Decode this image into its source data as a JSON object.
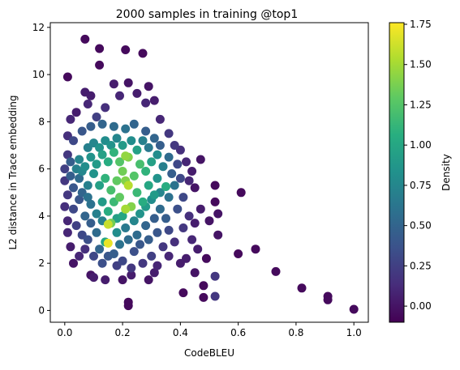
{
  "figure": {
    "title": "2000 samples in training @top1"
  },
  "chart_data": {
    "type": "scatter",
    "title": "2000 samples in training @top1",
    "xlabel": "CodeBLEU",
    "ylabel": "L2 distance in Trace embedding",
    "xlim": [
      -0.05,
      1.05
    ],
    "ylim": [
      -0.5,
      12.2
    ],
    "xticks": [
      "0.0",
      "0.2",
      "0.4",
      "0.6",
      "0.8",
      "1.0"
    ],
    "xtick_values": [
      0.0,
      0.2,
      0.4,
      0.6,
      0.8,
      1.0
    ],
    "yticks": [
      "0",
      "2",
      "4",
      "6",
      "8",
      "10",
      "12"
    ],
    "ytick_values": [
      0,
      2,
      4,
      6,
      8,
      10,
      12
    ],
    "grid": false,
    "colormap": "viridis",
    "colorbar": {
      "label": "Density",
      "range": [
        -0.1,
        1.76
      ],
      "ticks": [
        "0.00",
        "0.25",
        "0.50",
        "0.75",
        "1.00",
        "1.25",
        "1.50",
        "1.75"
      ],
      "tick_values": [
        0.0,
        0.25,
        0.5,
        0.75,
        1.0,
        1.25,
        1.5,
        1.75
      ]
    },
    "points": [
      {
        "x": 0.07,
        "y": 11.5,
        "d": -0.05
      },
      {
        "x": 0.12,
        "y": 11.1,
        "d": -0.05
      },
      {
        "x": 0.21,
        "y": 11.05,
        "d": -0.05
      },
      {
        "x": 0.27,
        "y": 10.9,
        "d": -0.05
      },
      {
        "x": 0.12,
        "y": 10.4,
        "d": -0.05
      },
      {
        "x": 0.01,
        "y": 9.9,
        "d": -0.05
      },
      {
        "x": 0.22,
        "y": 9.65,
        "d": 0.0
      },
      {
        "x": 0.17,
        "y": 9.6,
        "d": 0.05
      },
      {
        "x": 0.29,
        "y": 9.5,
        "d": 0.0
      },
      {
        "x": 0.07,
        "y": 9.25,
        "d": 0.05
      },
      {
        "x": 0.08,
        "y": 8.75,
        "d": 0.1
      },
      {
        "x": 0.19,
        "y": 9.1,
        "d": 0.1
      },
      {
        "x": 0.25,
        "y": 9.2,
        "d": 0.05
      },
      {
        "x": 0.28,
        "y": 8.8,
        "d": 0.1
      },
      {
        "x": 0.31,
        "y": 8.9,
        "d": 0.05
      },
      {
        "x": 0.09,
        "y": 9.1,
        "d": 0.05
      },
      {
        "x": 0.14,
        "y": 8.6,
        "d": 0.15
      },
      {
        "x": 0.02,
        "y": 8.1,
        "d": 0.1
      },
      {
        "x": 0.04,
        "y": 8.4,
        "d": 0.05
      },
      {
        "x": 0.11,
        "y": 8.2,
        "d": 0.25
      },
      {
        "x": 0.33,
        "y": 8.1,
        "d": 0.1
      },
      {
        "x": 0.36,
        "y": 7.5,
        "d": 0.2
      },
      {
        "x": 0.38,
        "y": 7.0,
        "d": 0.2
      },
      {
        "x": 0.4,
        "y": 6.8,
        "d": 0.15
      },
      {
        "x": 0.42,
        "y": 6.3,
        "d": 0.1
      },
      {
        "x": 0.44,
        "y": 5.9,
        "d": 0.05
      },
      {
        "x": 0.47,
        "y": 6.4,
        "d": 0.0
      },
      {
        "x": 0.01,
        "y": 7.4,
        "d": 0.15
      },
      {
        "x": 0.01,
        "y": 6.6,
        "d": 0.2
      },
      {
        "x": 0.0,
        "y": 6.0,
        "d": 0.25
      },
      {
        "x": 0.0,
        "y": 5.5,
        "d": 0.2
      },
      {
        "x": 0.01,
        "y": 4.9,
        "d": 0.2
      },
      {
        "x": 0.0,
        "y": 4.4,
        "d": 0.15
      },
      {
        "x": 0.01,
        "y": 3.8,
        "d": 0.1
      },
      {
        "x": 0.01,
        "y": 3.3,
        "d": 0.1
      },
      {
        "x": 0.02,
        "y": 2.7,
        "d": 0.05
      },
      {
        "x": 0.07,
        "y": 2.6,
        "d": 0.15
      },
      {
        "x": 0.05,
        "y": 2.3,
        "d": 0.1
      },
      {
        "x": 0.09,
        "y": 1.5,
        "d": 0.0
      },
      {
        "x": 0.1,
        "y": 1.4,
        "d": 0.05
      },
      {
        "x": 0.14,
        "y": 1.3,
        "d": 0.05
      },
      {
        "x": 0.2,
        "y": 1.3,
        "d": 0.0
      },
      {
        "x": 0.23,
        "y": 1.5,
        "d": 0.05
      },
      {
        "x": 0.29,
        "y": 1.3,
        "d": 0.0
      },
      {
        "x": 0.31,
        "y": 1.6,
        "d": 0.05
      },
      {
        "x": 0.22,
        "y": 0.35,
        "d": -0.05
      },
      {
        "x": 0.22,
        "y": 0.2,
        "d": -0.05
      },
      {
        "x": 0.41,
        "y": 0.75,
        "d": -0.05
      },
      {
        "x": 0.48,
        "y": 0.55,
        "d": -0.05
      },
      {
        "x": 0.48,
        "y": 1.05,
        "d": -0.05
      },
      {
        "x": 0.52,
        "y": 0.6,
        "d": 0.2
      },
      {
        "x": 0.52,
        "y": 1.45,
        "d": 0.2
      },
      {
        "x": 0.52,
        "y": 5.3,
        "d": -0.05
      },
      {
        "x": 0.52,
        "y": 4.6,
        "d": -0.05
      },
      {
        "x": 0.53,
        "y": 4.1,
        "d": 0.0
      },
      {
        "x": 0.53,
        "y": 3.2,
        "d": 0.0
      },
      {
        "x": 0.5,
        "y": 3.8,
        "d": 0.0
      },
      {
        "x": 0.47,
        "y": 4.3,
        "d": 0.05
      },
      {
        "x": 0.45,
        "y": 3.7,
        "d": 0.05
      },
      {
        "x": 0.44,
        "y": 3.0,
        "d": 0.1
      },
      {
        "x": 0.46,
        "y": 2.6,
        "d": 0.05
      },
      {
        "x": 0.42,
        "y": 2.2,
        "d": 0.05
      },
      {
        "x": 0.45,
        "y": 1.6,
        "d": 0.0
      },
      {
        "x": 0.49,
        "y": 2.2,
        "d": -0.05
      },
      {
        "x": 0.6,
        "y": 2.4,
        "d": -0.05
      },
      {
        "x": 0.61,
        "y": 5.0,
        "d": -0.05
      },
      {
        "x": 0.66,
        "y": 2.6,
        "d": -0.05
      },
      {
        "x": 0.73,
        "y": 1.65,
        "d": -0.05
      },
      {
        "x": 0.82,
        "y": 0.95,
        "d": -0.05
      },
      {
        "x": 0.91,
        "y": 0.6,
        "d": -0.05
      },
      {
        "x": 0.91,
        "y": 0.45,
        "d": -0.05
      },
      {
        "x": 1.0,
        "y": 0.05,
        "d": -0.05
      },
      {
        "x": 0.38,
        "y": 2.9,
        "d": 0.15
      },
      {
        "x": 0.36,
        "y": 3.4,
        "d": 0.3
      },
      {
        "x": 0.34,
        "y": 2.7,
        "d": 0.2
      },
      {
        "x": 0.3,
        "y": 2.3,
        "d": 0.25
      },
      {
        "x": 0.27,
        "y": 2.0,
        "d": 0.2
      },
      {
        "x": 0.24,
        "y": 2.5,
        "d": 0.35
      },
      {
        "x": 0.2,
        "y": 2.1,
        "d": 0.3
      },
      {
        "x": 0.17,
        "y": 2.4,
        "d": 0.45
      },
      {
        "x": 0.13,
        "y": 2.0,
        "d": 0.35
      },
      {
        "x": 0.1,
        "y": 2.3,
        "d": 0.3
      },
      {
        "x": 0.08,
        "y": 3.0,
        "d": 0.35
      },
      {
        "x": 0.11,
        "y": 3.3,
        "d": 0.55
      },
      {
        "x": 0.14,
        "y": 2.9,
        "d": 1.0
      },
      {
        "x": 0.15,
        "y": 2.85,
        "d": 1.7
      },
      {
        "x": 0.16,
        "y": 3.7,
        "d": 1.35
      },
      {
        "x": 0.15,
        "y": 3.65,
        "d": 1.6
      },
      {
        "x": 0.18,
        "y": 3.3,
        "d": 0.8
      },
      {
        "x": 0.21,
        "y": 3.5,
        "d": 0.65
      },
      {
        "x": 0.25,
        "y": 3.2,
        "d": 0.55
      },
      {
        "x": 0.28,
        "y": 3.6,
        "d": 0.5
      },
      {
        "x": 0.31,
        "y": 3.9,
        "d": 0.45
      },
      {
        "x": 0.33,
        "y": 4.3,
        "d": 0.55
      },
      {
        "x": 0.36,
        "y": 4.8,
        "d": 0.6
      },
      {
        "x": 0.38,
        "y": 5.3,
        "d": 0.6
      },
      {
        "x": 0.37,
        "y": 5.8,
        "d": 0.45
      },
      {
        "x": 0.35,
        "y": 5.25,
        "d": 1.05
      },
      {
        "x": 0.32,
        "y": 5.6,
        "d": 0.85
      },
      {
        "x": 0.31,
        "y": 4.9,
        "d": 0.9
      },
      {
        "x": 0.29,
        "y": 5.3,
        "d": 1.0
      },
      {
        "x": 0.27,
        "y": 4.6,
        "d": 1.05
      },
      {
        "x": 0.25,
        "y": 5.0,
        "d": 1.15
      },
      {
        "x": 0.23,
        "y": 4.4,
        "d": 1.4
      },
      {
        "x": 0.21,
        "y": 4.3,
        "d": 1.5
      },
      {
        "x": 0.22,
        "y": 5.3,
        "d": 1.55
      },
      {
        "x": 0.21,
        "y": 5.5,
        "d": 1.4
      },
      {
        "x": 0.19,
        "y": 4.8,
        "d": 1.3
      },
      {
        "x": 0.17,
        "y": 4.6,
        "d": 1.15
      },
      {
        "x": 0.15,
        "y": 4.2,
        "d": 1.05
      },
      {
        "x": 0.13,
        "y": 4.6,
        "d": 0.9
      },
      {
        "x": 0.11,
        "y": 4.1,
        "d": 0.7
      },
      {
        "x": 0.09,
        "y": 4.5,
        "d": 0.6
      },
      {
        "x": 0.07,
        "y": 4.0,
        "d": 0.5
      },
      {
        "x": 0.05,
        "y": 4.7,
        "d": 0.4
      },
      {
        "x": 0.03,
        "y": 5.2,
        "d": 0.4
      },
      {
        "x": 0.05,
        "y": 5.6,
        "d": 0.55
      },
      {
        "x": 0.08,
        "y": 5.3,
        "d": 0.7
      },
      {
        "x": 0.1,
        "y": 5.8,
        "d": 0.85
      },
      {
        "x": 0.12,
        "y": 5.3,
        "d": 0.95
      },
      {
        "x": 0.14,
        "y": 5.6,
        "d": 1.1
      },
      {
        "x": 0.16,
        "y": 5.1,
        "d": 1.2
      },
      {
        "x": 0.18,
        "y": 5.5,
        "d": 1.3
      },
      {
        "x": 0.2,
        "y": 5.9,
        "d": 1.35
      },
      {
        "x": 0.24,
        "y": 5.7,
        "d": 1.25
      },
      {
        "x": 0.26,
        "y": 6.2,
        "d": 1.2
      },
      {
        "x": 0.28,
        "y": 5.9,
        "d": 1.1
      },
      {
        "x": 0.3,
        "y": 6.3,
        "d": 0.95
      },
      {
        "x": 0.32,
        "y": 6.6,
        "d": 0.8
      },
      {
        "x": 0.34,
        "y": 6.1,
        "d": 0.7
      },
      {
        "x": 0.36,
        "y": 6.5,
        "d": 0.55
      },
      {
        "x": 0.22,
        "y": 6.5,
        "d": 1.4
      },
      {
        "x": 0.21,
        "y": 6.55,
        "d": 1.45
      },
      {
        "x": 0.19,
        "y": 6.3,
        "d": 1.25
      },
      {
        "x": 0.17,
        "y": 6.7,
        "d": 1.1
      },
      {
        "x": 0.15,
        "y": 6.3,
        "d": 1.05
      },
      {
        "x": 0.13,
        "y": 6.6,
        "d": 0.95
      },
      {
        "x": 0.11,
        "y": 6.2,
        "d": 0.9
      },
      {
        "x": 0.09,
        "y": 6.5,
        "d": 0.85
      },
      {
        "x": 0.07,
        "y": 6.1,
        "d": 0.8
      },
      {
        "x": 0.05,
        "y": 6.4,
        "d": 0.75
      },
      {
        "x": 0.04,
        "y": 6.0,
        "d": 0.7
      },
      {
        "x": 0.06,
        "y": 5.9,
        "d": 0.75
      },
      {
        "x": 0.08,
        "y": 6.9,
        "d": 0.7
      },
      {
        "x": 0.1,
        "y": 7.1,
        "d": 0.75
      },
      {
        "x": 0.12,
        "y": 6.9,
        "d": 0.85
      },
      {
        "x": 0.14,
        "y": 7.2,
        "d": 0.8
      },
      {
        "x": 0.16,
        "y": 7.0,
        "d": 0.85
      },
      {
        "x": 0.18,
        "y": 7.3,
        "d": 0.75
      },
      {
        "x": 0.2,
        "y": 7.0,
        "d": 0.9
      },
      {
        "x": 0.23,
        "y": 7.2,
        "d": 0.8
      },
      {
        "x": 0.25,
        "y": 6.8,
        "d": 0.95
      },
      {
        "x": 0.27,
        "y": 7.2,
        "d": 0.7
      },
      {
        "x": 0.29,
        "y": 6.9,
        "d": 0.65
      },
      {
        "x": 0.31,
        "y": 7.3,
        "d": 0.5
      },
      {
        "x": 0.33,
        "y": 7.0,
        "d": 0.45
      },
      {
        "x": 0.06,
        "y": 7.6,
        "d": 0.4
      },
      {
        "x": 0.09,
        "y": 7.8,
        "d": 0.45
      },
      {
        "x": 0.13,
        "y": 7.9,
        "d": 0.5
      },
      {
        "x": 0.17,
        "y": 7.8,
        "d": 0.55
      },
      {
        "x": 0.21,
        "y": 7.7,
        "d": 0.6
      },
      {
        "x": 0.24,
        "y": 7.9,
        "d": 0.5
      },
      {
        "x": 0.28,
        "y": 7.6,
        "d": 0.45
      },
      {
        "x": 0.03,
        "y": 7.2,
        "d": 0.3
      },
      {
        "x": 0.02,
        "y": 6.3,
        "d": 0.45
      },
      {
        "x": 0.02,
        "y": 5.7,
        "d": 0.45
      },
      {
        "x": 0.03,
        "y": 4.3,
        "d": 0.3
      },
      {
        "x": 0.04,
        "y": 3.6,
        "d": 0.25
      },
      {
        "x": 0.06,
        "y": 3.2,
        "d": 0.3
      },
      {
        "x": 0.12,
        "y": 2.6,
        "d": 0.5
      },
      {
        "x": 0.19,
        "y": 2.8,
        "d": 0.6
      },
      {
        "x": 0.22,
        "y": 3.0,
        "d": 0.55
      },
      {
        "x": 0.26,
        "y": 2.8,
        "d": 0.4
      },
      {
        "x": 0.29,
        "y": 3.0,
        "d": 0.45
      },
      {
        "x": 0.32,
        "y": 3.3,
        "d": 0.4
      },
      {
        "x": 0.35,
        "y": 3.9,
        "d": 0.45
      },
      {
        "x": 0.39,
        "y": 4.3,
        "d": 0.35
      },
      {
        "x": 0.41,
        "y": 4.8,
        "d": 0.3
      },
      {
        "x": 0.4,
        "y": 5.6,
        "d": 0.3
      },
      {
        "x": 0.39,
        "y": 6.2,
        "d": 0.3
      },
      {
        "x": 0.41,
        "y": 3.5,
        "d": 0.2
      },
      {
        "x": 0.43,
        "y": 4.0,
        "d": 0.15
      },
      {
        "x": 0.26,
        "y": 4.1,
        "d": 0.85
      },
      {
        "x": 0.24,
        "y": 3.8,
        "d": 0.75
      },
      {
        "x": 0.2,
        "y": 4.0,
        "d": 1.0
      },
      {
        "x": 0.18,
        "y": 3.9,
        "d": 0.95
      },
      {
        "x": 0.13,
        "y": 3.8,
        "d": 0.7
      },
      {
        "x": 0.09,
        "y": 3.7,
        "d": 0.45
      },
      {
        "x": 0.28,
        "y": 4.4,
        "d": 0.9
      },
      {
        "x": 0.3,
        "y": 4.7,
        "d": 0.8
      },
      {
        "x": 0.33,
        "y": 5.0,
        "d": 0.75
      },
      {
        "x": 0.06,
        "y": 5.0,
        "d": 0.5
      },
      {
        "x": 0.08,
        "y": 4.8,
        "d": 0.6
      },
      {
        "x": 0.15,
        "y": 2.3,
        "d": 0.4
      },
      {
        "x": 0.18,
        "y": 1.9,
        "d": 0.25
      },
      {
        "x": 0.23,
        "y": 1.8,
        "d": 0.2
      },
      {
        "x": 0.32,
        "y": 1.9,
        "d": 0.1
      },
      {
        "x": 0.36,
        "y": 2.3,
        "d": 0.1
      },
      {
        "x": 0.4,
        "y": 2.0,
        "d": 0.05
      },
      {
        "x": 0.03,
        "y": 2.0,
        "d": 0.0
      },
      {
        "x": 0.45,
        "y": 5.2,
        "d": 0.0
      },
      {
        "x": 0.43,
        "y": 5.5,
        "d": 0.1
      }
    ]
  }
}
